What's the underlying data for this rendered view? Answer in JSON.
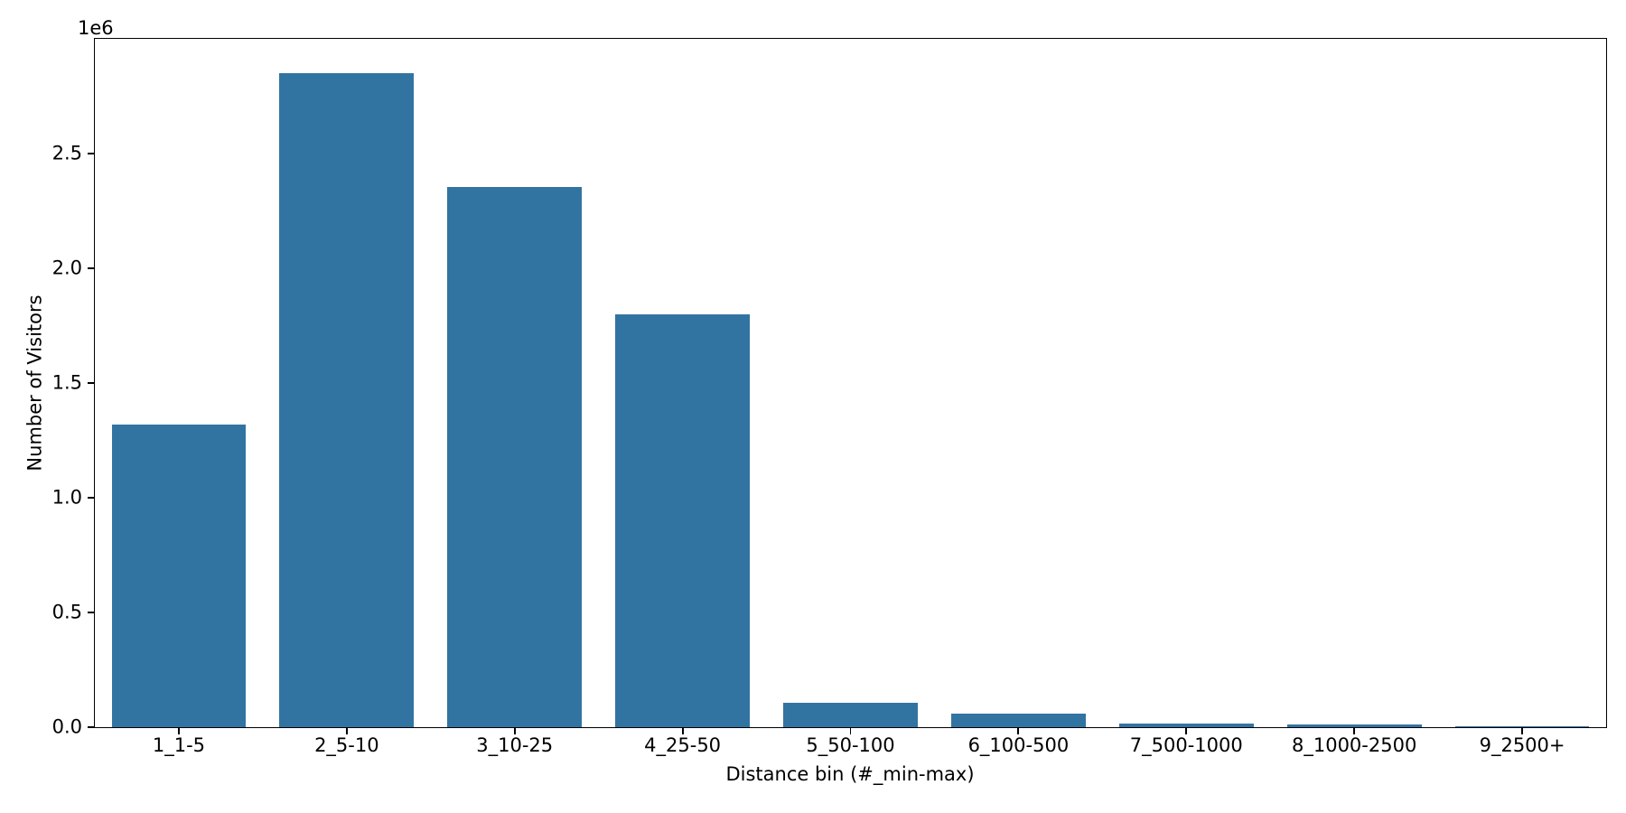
{
  "chart_data": {
    "type": "bar",
    "title": "",
    "xlabel": "Distance bin (#_min-max)",
    "ylabel": "Number of Visitors",
    "y_offset_text": "1e6",
    "categories": [
      "1_1-5",
      "2_5-10",
      "3_10-25",
      "4_25-50",
      "5_50-100",
      "6_100-500",
      "7_500-1000",
      "8_1000-2500",
      "9_2500+"
    ],
    "values": [
      1320000,
      2850000,
      2355000,
      1800000,
      106000,
      59000,
      17000,
      11000,
      2000
    ],
    "ylim": [
      0,
      3000000
    ],
    "yticks": [
      0,
      500000,
      1000000,
      1500000,
      2000000,
      2500000
    ],
    "ytick_labels": [
      "0.0",
      "0.5",
      "1.0",
      "1.5",
      "2.0",
      "2.5"
    ],
    "bar_color": "#3274A1",
    "axis_color": "#000000",
    "background_color": "#FFFFFF",
    "bar_width_fraction": 0.8,
    "grid": false,
    "legend": null
  }
}
